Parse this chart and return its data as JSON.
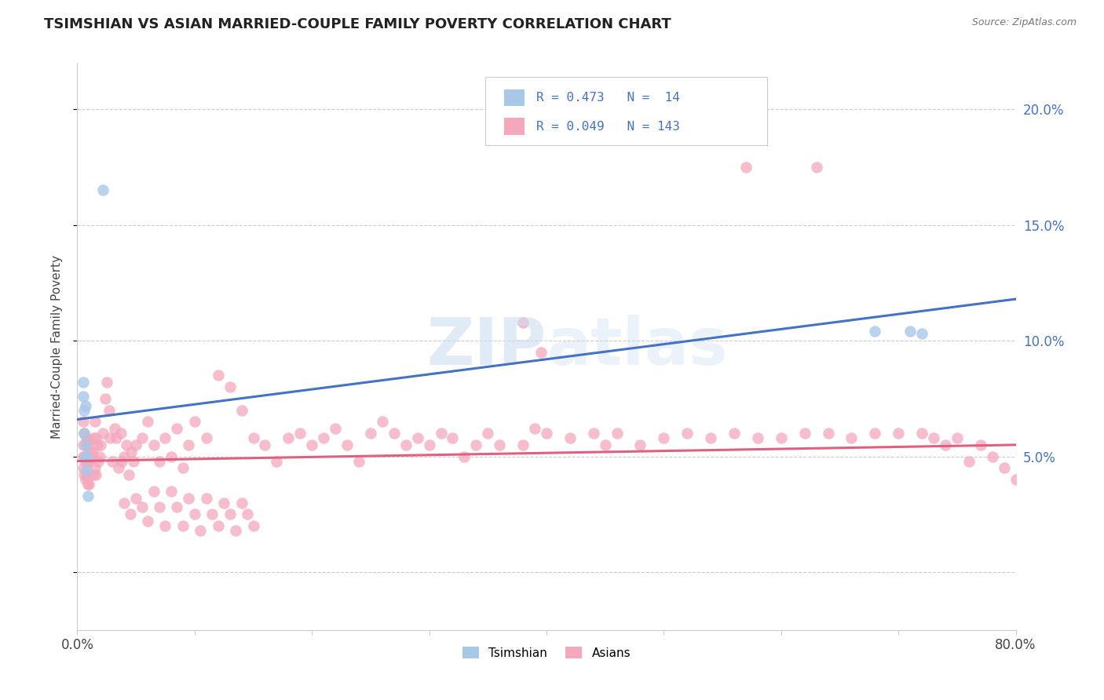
{
  "title": "TSIMSHIAN VS ASIAN MARRIED-COUPLE FAMILY POVERTY CORRELATION CHART",
  "source": "Source: ZipAtlas.com",
  "ylabel": "Married-Couple Family Poverty",
  "xlim": [
    0.0,
    0.8
  ],
  "ylim": [
    -0.025,
    0.22
  ],
  "xticks": [
    0.0,
    0.1,
    0.2,
    0.3,
    0.4,
    0.5,
    0.6,
    0.7,
    0.8
  ],
  "xticklabels": [
    "0.0%",
    "",
    "",
    "",
    "",
    "",
    "",
    "",
    "80.0%"
  ],
  "yticks": [
    0.0,
    0.05,
    0.1,
    0.15,
    0.2
  ],
  "yticklabels_right": [
    "",
    "5.0%",
    "10.0%",
    "15.0%",
    "20.0%"
  ],
  "tsimshian_color": "#a8c8e8",
  "asian_color": "#f4a8bc",
  "tsimshian_line_color": "#4472c4",
  "asian_line_color": "#e06080",
  "right_axis_color": "#4472c4",
  "legend_text_color": "#4472c4",
  "watermark_color": "#dce8f5",
  "tsimshian_x": [
    0.022,
    0.005,
    0.005,
    0.006,
    0.006,
    0.007,
    0.007,
    0.007,
    0.008,
    0.008,
    0.009,
    0.68,
    0.71,
    0.72
  ],
  "tsimshian_y": [
    0.165,
    0.082,
    0.076,
    0.07,
    0.06,
    0.055,
    0.05,
    0.072,
    0.05,
    0.044,
    0.033,
    0.104,
    0.104,
    0.103
  ],
  "asian_x": [
    0.005,
    0.005,
    0.005,
    0.005,
    0.006,
    0.006,
    0.006,
    0.007,
    0.007,
    0.007,
    0.008,
    0.008,
    0.008,
    0.009,
    0.009,
    0.009,
    0.01,
    0.01,
    0.01,
    0.011,
    0.012,
    0.013,
    0.014,
    0.014,
    0.015,
    0.015,
    0.016,
    0.016,
    0.017,
    0.018,
    0.019,
    0.02,
    0.022,
    0.024,
    0.025,
    0.027,
    0.028,
    0.03,
    0.032,
    0.033,
    0.035,
    0.037,
    0.038,
    0.04,
    0.042,
    0.044,
    0.046,
    0.048,
    0.05,
    0.055,
    0.06,
    0.065,
    0.07,
    0.075,
    0.08,
    0.085,
    0.09,
    0.095,
    0.1,
    0.11,
    0.12,
    0.13,
    0.14,
    0.15,
    0.16,
    0.17,
    0.18,
    0.19,
    0.2,
    0.21,
    0.22,
    0.23,
    0.24,
    0.25,
    0.26,
    0.27,
    0.28,
    0.29,
    0.3,
    0.31,
    0.32,
    0.33,
    0.34,
    0.35,
    0.36,
    0.38,
    0.39,
    0.4,
    0.42,
    0.44,
    0.45,
    0.46,
    0.48,
    0.5,
    0.52,
    0.54,
    0.56,
    0.58,
    0.6,
    0.62,
    0.64,
    0.66,
    0.68,
    0.7,
    0.72,
    0.73,
    0.74,
    0.75,
    0.76,
    0.77,
    0.78,
    0.79,
    0.8,
    0.57,
    0.63,
    0.38,
    0.395,
    0.04,
    0.045,
    0.05,
    0.055,
    0.06,
    0.065,
    0.07,
    0.075,
    0.08,
    0.085,
    0.09,
    0.095,
    0.1,
    0.105,
    0.11,
    0.115,
    0.12,
    0.125,
    0.13,
    0.135,
    0.14,
    0.145,
    0.15
  ],
  "asian_y": [
    0.065,
    0.055,
    0.05,
    0.045,
    0.06,
    0.05,
    0.042,
    0.055,
    0.048,
    0.04,
    0.058,
    0.05,
    0.042,
    0.057,
    0.048,
    0.038,
    0.055,
    0.048,
    0.038,
    0.052,
    0.05,
    0.052,
    0.058,
    0.042,
    0.065,
    0.045,
    0.058,
    0.042,
    0.055,
    0.048,
    0.05,
    0.055,
    0.06,
    0.075,
    0.082,
    0.07,
    0.058,
    0.048,
    0.062,
    0.058,
    0.045,
    0.06,
    0.048,
    0.05,
    0.055,
    0.042,
    0.052,
    0.048,
    0.055,
    0.058,
    0.065,
    0.055,
    0.048,
    0.058,
    0.05,
    0.062,
    0.045,
    0.055,
    0.065,
    0.058,
    0.085,
    0.08,
    0.07,
    0.058,
    0.055,
    0.048,
    0.058,
    0.06,
    0.055,
    0.058,
    0.062,
    0.055,
    0.048,
    0.06,
    0.065,
    0.06,
    0.055,
    0.058,
    0.055,
    0.06,
    0.058,
    0.05,
    0.055,
    0.06,
    0.055,
    0.055,
    0.062,
    0.06,
    0.058,
    0.06,
    0.055,
    0.06,
    0.055,
    0.058,
    0.06,
    0.058,
    0.06,
    0.058,
    0.058,
    0.06,
    0.06,
    0.058,
    0.06,
    0.06,
    0.06,
    0.058,
    0.055,
    0.058,
    0.048,
    0.055,
    0.05,
    0.045,
    0.04,
    0.175,
    0.175,
    0.108,
    0.095,
    0.03,
    0.025,
    0.032,
    0.028,
    0.022,
    0.035,
    0.028,
    0.02,
    0.035,
    0.028,
    0.02,
    0.032,
    0.025,
    0.018,
    0.032,
    0.025,
    0.02,
    0.03,
    0.025,
    0.018,
    0.03,
    0.025,
    0.02
  ],
  "tsim_line_x0": 0.0,
  "tsim_line_x1": 0.8,
  "tsim_line_y0": 0.066,
  "tsim_line_y1": 0.118,
  "asian_line_x0": 0.0,
  "asian_line_x1": 0.8,
  "asian_line_y0": 0.048,
  "asian_line_y1": 0.055
}
